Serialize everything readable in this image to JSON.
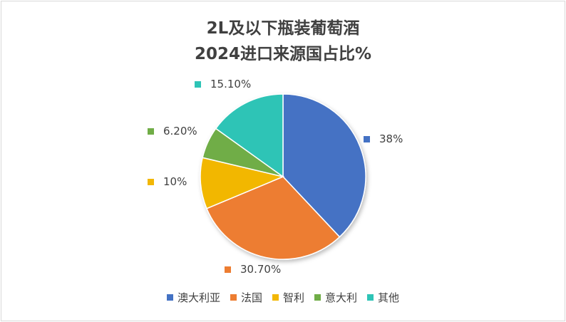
{
  "chart_data": {
    "type": "pie",
    "title_line1": "2L及以下瓶装葡萄酒",
    "title_line2": "2024进口来源国占比%",
    "slices": [
      {
        "name": "澳大利亚",
        "value": 38,
        "label": "38%",
        "color": "#4472C4"
      },
      {
        "name": "法国",
        "value": 30.7,
        "label": "30.70%",
        "color": "#ED7D31"
      },
      {
        "name": "智利",
        "value": 10,
        "label": "10%",
        "color": "#F2B705"
      },
      {
        "name": "意大利",
        "value": 6.2,
        "label": "6.20%",
        "color": "#70AD47"
      },
      {
        "name": "其他",
        "value": 15.1,
        "label": "15.10%",
        "color": "#2EC4B6"
      }
    ],
    "legend_position": "bottom",
    "start_angle": "12 o'clock, clockwise"
  }
}
